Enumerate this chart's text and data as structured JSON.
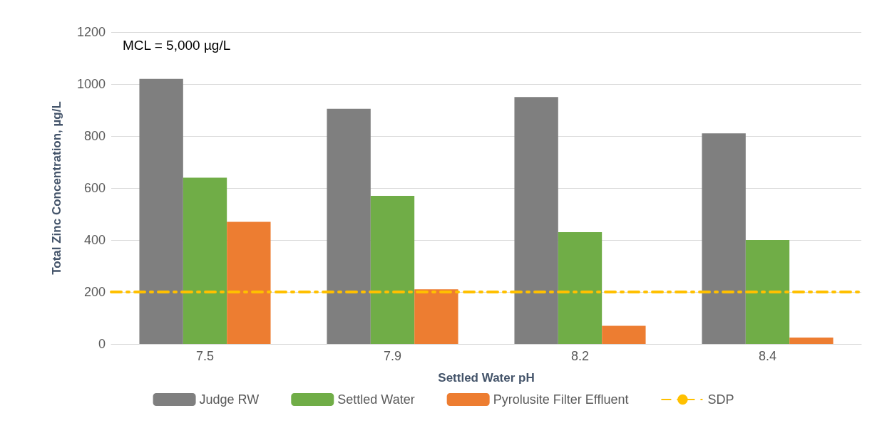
{
  "chart_data": {
    "type": "bar",
    "xlabel": "Settled Water pH",
    "ylabel": "Total Zinc Concentration, µg/L",
    "categories": [
      "7.5",
      "7.9",
      "8.2",
      "8.4"
    ],
    "series": [
      {
        "name": "Judge RW",
        "color": "#7f7f7f",
        "values": [
          1020,
          905,
          950,
          810
        ]
      },
      {
        "name": "Settled Water",
        "color": "#70ad47",
        "values": [
          640,
          570,
          430,
          400
        ]
      },
      {
        "name": "Pyrolusite Filter Effluent",
        "color": "#ed7d31",
        "values": [
          470,
          210,
          70,
          25
        ]
      }
    ],
    "ref_lines": [
      {
        "axis": "y",
        "value": 200,
        "label": "SDP",
        "color": "#ffc000",
        "line_style": "dashed"
      }
    ],
    "annotations": [
      "MCL = 5,000 µg/L"
    ],
    "ylim": [
      0,
      1200
    ],
    "yticks": [
      0,
      200,
      400,
      600,
      800,
      1000,
      1200
    ],
    "grid": "y",
    "legend": "bottom"
  }
}
